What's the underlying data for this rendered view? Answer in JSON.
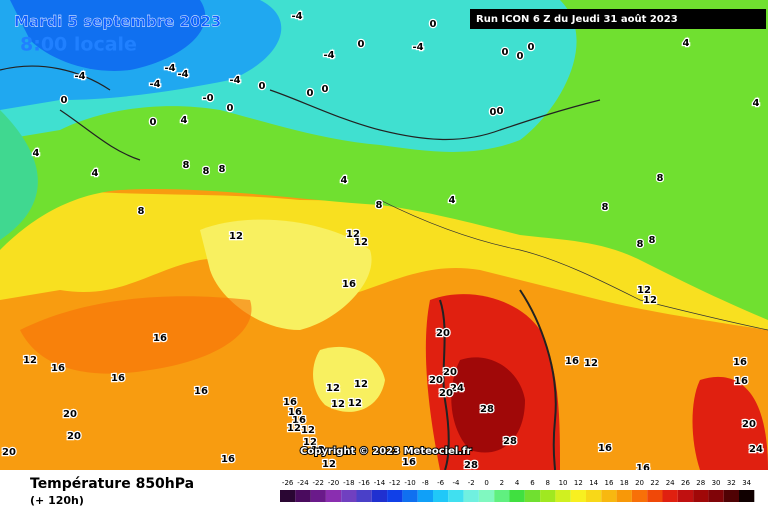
{
  "header": {
    "date": "Mardi 5 septembre 2023",
    "time": "8:00 locale",
    "run": "Run ICON 6 Z du Jeudi 31 août 2023",
    "copyright": "Copyright © 2023 Meteociel.fr"
  },
  "footer": {
    "title": "Température 850hPa",
    "lead": "(+ 120h)"
  },
  "scale": {
    "ticks": [
      -26,
      -24,
      -22,
      -20,
      -18,
      -16,
      -14,
      -12,
      -10,
      -8,
      -6,
      -4,
      -2,
      0,
      2,
      4,
      6,
      8,
      10,
      12,
      14,
      16,
      18,
      20,
      22,
      24,
      26,
      28,
      30,
      32,
      34
    ],
    "colors": [
      "#2a0633",
      "#4a0b5e",
      "#6a1a8a",
      "#8a2eb0",
      "#7040c0",
      "#4a40c8",
      "#2030d0",
      "#1040e8",
      "#1070f0",
      "#10a0f8",
      "#20c8f8",
      "#40e0f0",
      "#70f0e0",
      "#80f8c0",
      "#60f080",
      "#40e040",
      "#70e030",
      "#a0e820",
      "#d0f020",
      "#f8f020",
      "#f8d818",
      "#f8b810",
      "#f89808",
      "#f87008",
      "#f04808",
      "#e02010",
      "#c01010",
      "#a00808",
      "#800408",
      "#500204",
      "#100000"
    ]
  },
  "map_labels": [
    "-4",
    "-4",
    "-4",
    "0",
    "0",
    "0",
    "0",
    "4",
    "-4",
    "-4",
    "-4",
    "0",
    "0",
    "0",
    "0",
    "-4",
    "0",
    "-0",
    "0",
    "0",
    "4",
    "-4",
    "0",
    "0",
    "4",
    "4",
    "4",
    "8",
    "8",
    "8",
    "4",
    "8",
    "8",
    "8",
    "8",
    "4",
    "12",
    "12",
    "12",
    "16",
    "20",
    "20",
    "20",
    "24",
    "20",
    "28",
    "28",
    "28",
    "16",
    "16",
    "16",
    "12",
    "16",
    "20",
    "20",
    "20",
    "12",
    "12",
    "12",
    "12",
    "16",
    "16",
    "16",
    "12",
    "12",
    "12",
    "12",
    "16",
    "12",
    "16",
    "16",
    "16",
    "16",
    "12",
    "16",
    "16",
    "20",
    "24",
    "8",
    "8",
    "12",
    "12"
  ]
}
